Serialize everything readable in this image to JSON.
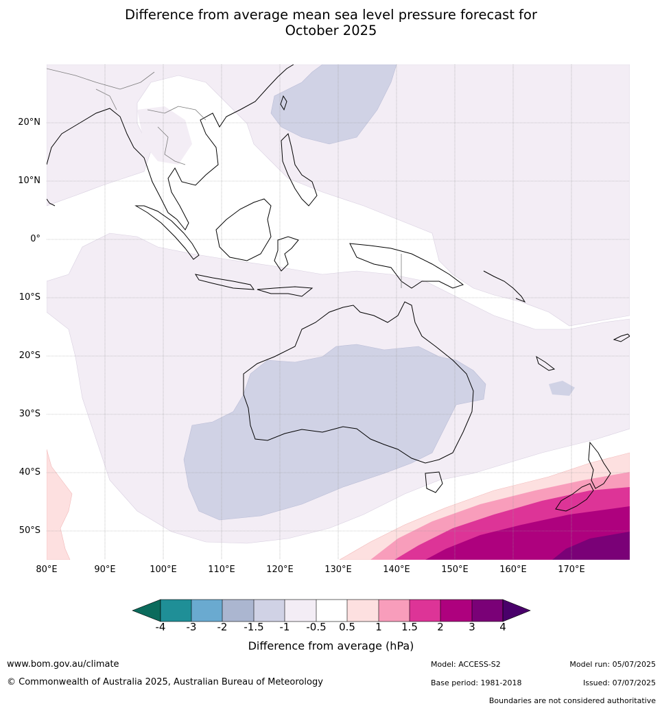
{
  "title": {
    "line1": "Difference from average mean sea level pressure forecast for",
    "line2": "October 2025"
  },
  "map": {
    "lat_ticks": [
      "20°N",
      "10°N",
      "0°",
      "10°S",
      "20°S",
      "30°S",
      "40°S",
      "50°S"
    ],
    "lon_ticks": [
      "80°E",
      "90°E",
      "100°E",
      "110°E",
      "120°E",
      "130°E",
      "140°E",
      "150°E",
      "160°E",
      "170°E"
    ],
    "extent": {
      "lon_min": 80,
      "lon_max": 180,
      "lat_min": -55,
      "lat_max": 30
    },
    "gridlines": true
  },
  "colorbar": {
    "label": "Difference from average (hPa)",
    "ticks": [
      "-4",
      "-3",
      "-2",
      "-1.5",
      "-1",
      "-0.5",
      "0.5",
      "1",
      "1.5",
      "2",
      "3",
      "4"
    ],
    "colors": {
      "below_-4": "#0b6b5c",
      "-4_-3": "#1f8f97",
      "-3_-2": "#6aaad0",
      "-2_-1.5": "#abb6d0",
      "-1.5_-1": "#d0d2e5",
      "-1_-0.5": "#f3edf5",
      "-0.5_0.5": "#ffffff",
      "0.5_1": "#fde0e0",
      "1_1.5": "#f89dbb",
      "1.5_2": "#dd3497",
      "2_3": "#ae017e",
      "3_4": "#7a0177",
      "above_4": "#49006a"
    }
  },
  "footer": {
    "website": "www.bom.gov.au/climate",
    "copyright": "© Commonwealth of Australia 2025, Australian Bureau of Meteorology",
    "model": "Model: ACCESS-S2",
    "base_period": "Base period: 1981-2018",
    "model_run": "Model run: 05/07/2025",
    "issued": "Issued: 07/07/2025",
    "disclaimer": "Boundaries are not considered authoritative"
  }
}
